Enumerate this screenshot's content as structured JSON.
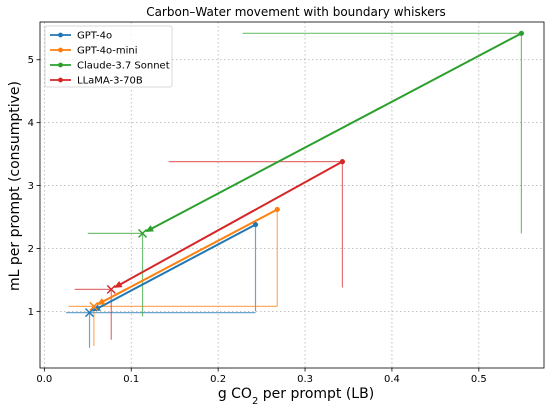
{
  "chart_data": {
    "type": "line",
    "title": "Carbon–Water movement with boundary whiskers",
    "xlabel": "g CO₂ per prompt (LB)",
    "ylabel": "mL per prompt (consumptive)",
    "xlim": [
      -0.005,
      0.575
    ],
    "ylim": [
      0.1,
      5.6
    ],
    "xticks": [
      0.0,
      0.1,
      0.2,
      0.3,
      0.4,
      0.5
    ],
    "yticks": [
      1,
      2,
      3,
      4,
      5
    ],
    "grid": true,
    "legend_position": "top-left",
    "series": [
      {
        "name": "GPT-4o",
        "color": "#1f77b4",
        "start": {
          "x": 0.052,
          "y": 0.98
        },
        "end": {
          "x": 0.243,
          "y": 2.38
        },
        "hwhisker": {
          "x_from": 0.025,
          "x_to": 0.243,
          "y": 0.98
        },
        "vwhisker": {
          "x": 0.243,
          "y_from": 1.0,
          "y_to": 2.38
        },
        "start_vwhisker": {
          "x": 0.052,
          "y_from": 0.42,
          "y_to": 0.98
        }
      },
      {
        "name": "GPT-4o-mini",
        "color": "#ff7f0e",
        "start": {
          "x": 0.057,
          "y": 1.08
        },
        "end": {
          "x": 0.268,
          "y": 2.62
        },
        "hwhisker": {
          "x_from": 0.028,
          "x_to": 0.268,
          "y": 1.08
        },
        "vwhisker": {
          "x": 0.268,
          "y_from": 1.08,
          "y_to": 2.62
        },
        "start_vwhisker": {
          "x": 0.057,
          "y_from": 0.45,
          "y_to": 1.08
        }
      },
      {
        "name": "Claude-3.7 Sonnet",
        "color": "#2ca02c",
        "start": {
          "x": 0.113,
          "y": 2.24
        },
        "end": {
          "x": 0.549,
          "y": 5.42
        },
        "hwhisker": {
          "x_from": 0.228,
          "x_to": 0.549,
          "y": 5.42
        },
        "vwhisker": {
          "x": 0.549,
          "y_from": 2.24,
          "y_to": 5.42
        },
        "start_hwhisker": {
          "x_from": 0.05,
          "x_to": 0.113,
          "y": 2.24
        },
        "start_vwhisker": {
          "x": 0.113,
          "y_from": 0.92,
          "y_to": 2.24
        }
      },
      {
        "name": "LLaMA-3-70B",
        "color": "#d62728",
        "start": {
          "x": 0.077,
          "y": 1.35
        },
        "end": {
          "x": 0.343,
          "y": 3.38
        },
        "hwhisker": {
          "x_from": 0.143,
          "x_to": 0.343,
          "y": 3.38
        },
        "vwhisker": {
          "x": 0.343,
          "y_from": 1.38,
          "y_to": 3.38
        },
        "start_hwhisker": {
          "x_from": 0.035,
          "x_to": 0.077,
          "y": 1.35
        },
        "start_vwhisker": {
          "x": 0.077,
          "y_from": 0.55,
          "y_to": 1.35
        }
      }
    ]
  }
}
